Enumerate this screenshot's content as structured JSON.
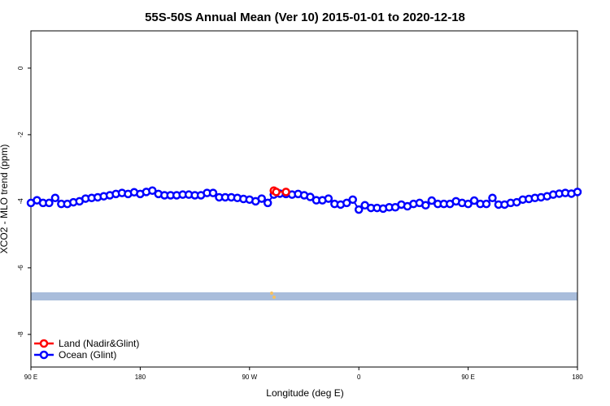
{
  "chart_data": {
    "type": "line",
    "title": "55S-50S Annual Mean (Ver 10)   2015-01-01 to 2020-12-18",
    "x_label": "Longitude (deg E)",
    "y_label": "XCO2 - MLO trend (ppm)",
    "xlim": [
      90,
      540
    ],
    "ylim": [
      -8.98,
      1.12
    ],
    "xticks": [
      {
        "value": 90,
        "label": "90 E"
      },
      {
        "value": 180,
        "label": "180"
      },
      {
        "value": 270,
        "label": "90 W"
      },
      {
        "value": 360,
        "label": "0"
      },
      {
        "value": 450,
        "label": "90 E"
      },
      {
        "value": 540,
        "label": "180"
      }
    ],
    "yticks": [
      0,
      -2,
      -4,
      -6,
      -8
    ],
    "legend": "bottom-left",
    "series": [
      {
        "name": "Land (Nadir&Glint)",
        "color": "#ff0000",
        "x": [
          290,
          292,
          300
        ],
        "values": [
          -3.68,
          -3.72,
          -3.72
        ]
      },
      {
        "name": "Ocean (Glint)",
        "color": "#0000ff",
        "x": [
          90,
          95,
          100,
          105,
          110,
          115,
          120,
          125,
          130,
          135,
          140,
          145,
          150,
          155,
          160,
          165,
          170,
          175,
          180,
          185,
          190,
          195,
          200,
          205,
          210,
          215,
          220,
          225,
          230,
          235,
          240,
          245,
          250,
          255,
          260,
          265,
          270,
          275,
          280,
          285,
          290,
          295,
          300,
          305,
          310,
          315,
          320,
          325,
          330,
          335,
          340,
          345,
          350,
          355,
          360,
          365,
          370,
          375,
          380,
          385,
          390,
          395,
          400,
          405,
          410,
          415,
          420,
          425,
          430,
          435,
          440,
          445,
          450,
          455,
          460,
          465,
          470,
          475,
          480,
          485,
          490,
          495,
          500,
          505,
          510,
          515,
          520,
          525,
          530,
          535,
          540
        ],
        "values": [
          -4.05,
          -3.97,
          -4.05,
          -4.05,
          -3.9,
          -4.08,
          -4.08,
          -4.03,
          -4.0,
          -3.92,
          -3.9,
          -3.88,
          -3.85,
          -3.82,
          -3.78,
          -3.75,
          -3.78,
          -3.73,
          -3.78,
          -3.72,
          -3.68,
          -3.78,
          -3.82,
          -3.82,
          -3.82,
          -3.8,
          -3.8,
          -3.82,
          -3.82,
          -3.75,
          -3.75,
          -3.88,
          -3.88,
          -3.88,
          -3.9,
          -3.93,
          -3.95,
          -4.0,
          -3.92,
          -4.05,
          -3.8,
          -3.77,
          -3.78,
          -3.8,
          -3.78,
          -3.82,
          -3.87,
          -3.97,
          -3.97,
          -3.92,
          -4.08,
          -4.1,
          -4.05,
          -3.95,
          -4.25,
          -4.12,
          -4.2,
          -4.2,
          -4.22,
          -4.18,
          -4.18,
          -4.1,
          -4.15,
          -4.08,
          -4.05,
          -4.12,
          -3.98,
          -4.08,
          -4.08,
          -4.08,
          -4.0,
          -4.05,
          -4.08,
          -3.98,
          -4.08,
          -4.08,
          -3.9,
          -4.1,
          -4.1,
          -4.05,
          -4.03,
          -3.95,
          -3.93,
          -3.9,
          -3.88,
          -3.85,
          -3.8,
          -3.77,
          -3.75,
          -3.77,
          -3.72
        ]
      }
    ]
  }
}
